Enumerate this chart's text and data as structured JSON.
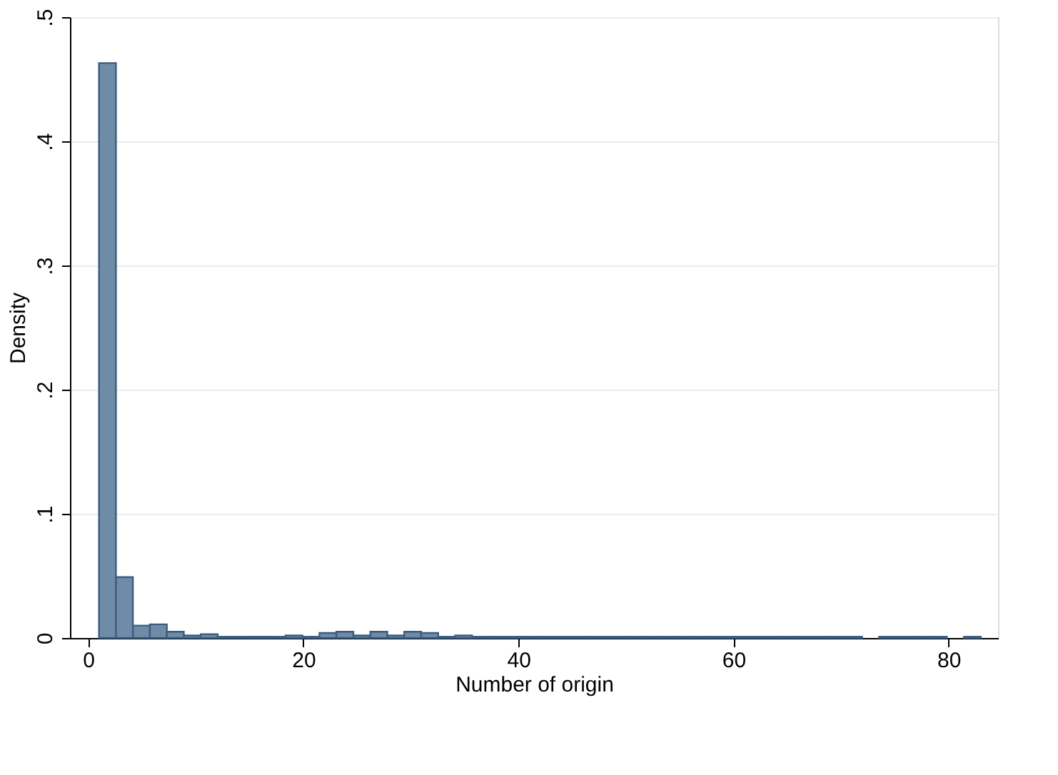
{
  "chart_data": {
    "type": "histogram",
    "xlabel": "Number of origin",
    "ylabel": "Density",
    "bins": [
      1,
      2.577,
      4.154,
      5.731,
      7.308,
      8.885,
      10.462,
      12.038,
      13.615,
      15.192,
      16.769,
      18.346,
      19.923,
      21.5,
      23.077,
      24.654,
      26.231,
      27.808,
      29.385,
      30.962,
      32.538,
      34.115,
      35.692,
      37.269,
      38.846,
      40.423,
      42,
      43.577,
      45.154,
      46.731,
      48.308,
      49.885,
      51.462,
      53.038,
      54.615,
      56.192,
      57.769,
      59.346,
      60.923,
      62.5,
      64.077,
      65.654,
      67.231,
      68.808,
      70.385,
      71.962,
      73.538,
      75.115,
      76.692,
      78.269,
      79.846,
      81.423,
      83
    ],
    "values": [
      0.463,
      0.049,
      0.01,
      0.011,
      0.005,
      0.002,
      0.003,
      0.001,
      0.001,
      0.001,
      0.001,
      0.002,
      0.001,
      0.004,
      0.005,
      0.002,
      0.005,
      0.002,
      0.005,
      0.004,
      0.001,
      0.002,
      0.001,
      0.001,
      0.001,
      0.001,
      0.001,
      0.001,
      0.001,
      0.001,
      0.001,
      0.001,
      0.001,
      0.001,
      0.001,
      0.001,
      0.001,
      0.001,
      0.001,
      0.001,
      0.001,
      0.001,
      0.001,
      0.001,
      0.001,
      0,
      0.001,
      0.001,
      0.001,
      0.001,
      0,
      0.001
    ],
    "color": "#6f8ba8",
    "xlim": [
      -1.7,
      84.6
    ],
    "ylim": [
      0,
      0.5
    ],
    "xticks": [
      0,
      20,
      40,
      60,
      80
    ],
    "yticks": [
      0,
      {
        "value": 0.1,
        "label": ".1"
      },
      {
        "value": 0.2,
        "label": ".2"
      },
      {
        "value": 0.3,
        "label": ".3"
      },
      {
        "value": 0.4,
        "label": ".4"
      },
      {
        "value": 0.5,
        "label": ".5"
      }
    ],
    "grid": "y"
  }
}
